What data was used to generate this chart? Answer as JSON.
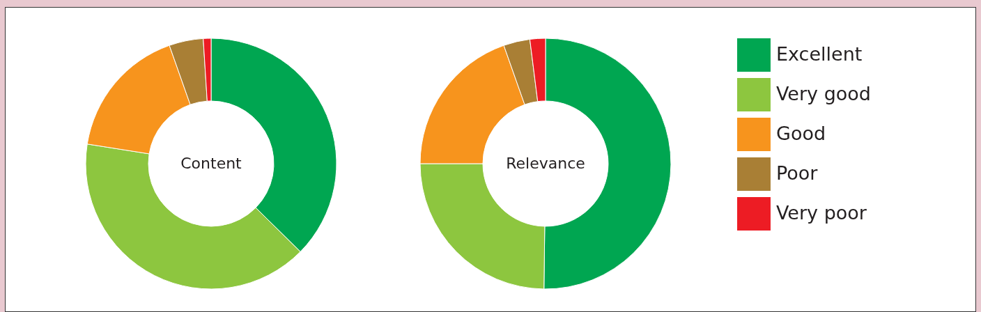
{
  "chart_data": [
    {
      "type": "donut",
      "title": "Content",
      "categories": [
        null,
        null,
        null,
        null,
        null
      ],
      "values": [
        37.4,
        40.1,
        17.1,
        4.4,
        1.0
      ],
      "colors": [
        "#00a651",
        "#8dc63f",
        "#f7941d",
        "#a97f35",
        "#ed1c24"
      ],
      "legend": false
    },
    {
      "type": "donut",
      "title": "Relevance",
      "categories": [
        "Excellent",
        "Very good",
        "Good",
        "Poor",
        "Very poor"
      ],
      "values": [
        50.2,
        24.8,
        19.6,
        3.4,
        2.0
      ],
      "colors": [
        "#00a651",
        "#8dc63f",
        "#f7941d",
        "#a97f35",
        "#ed1c24"
      ],
      "legend": "right"
    }
  ]
}
